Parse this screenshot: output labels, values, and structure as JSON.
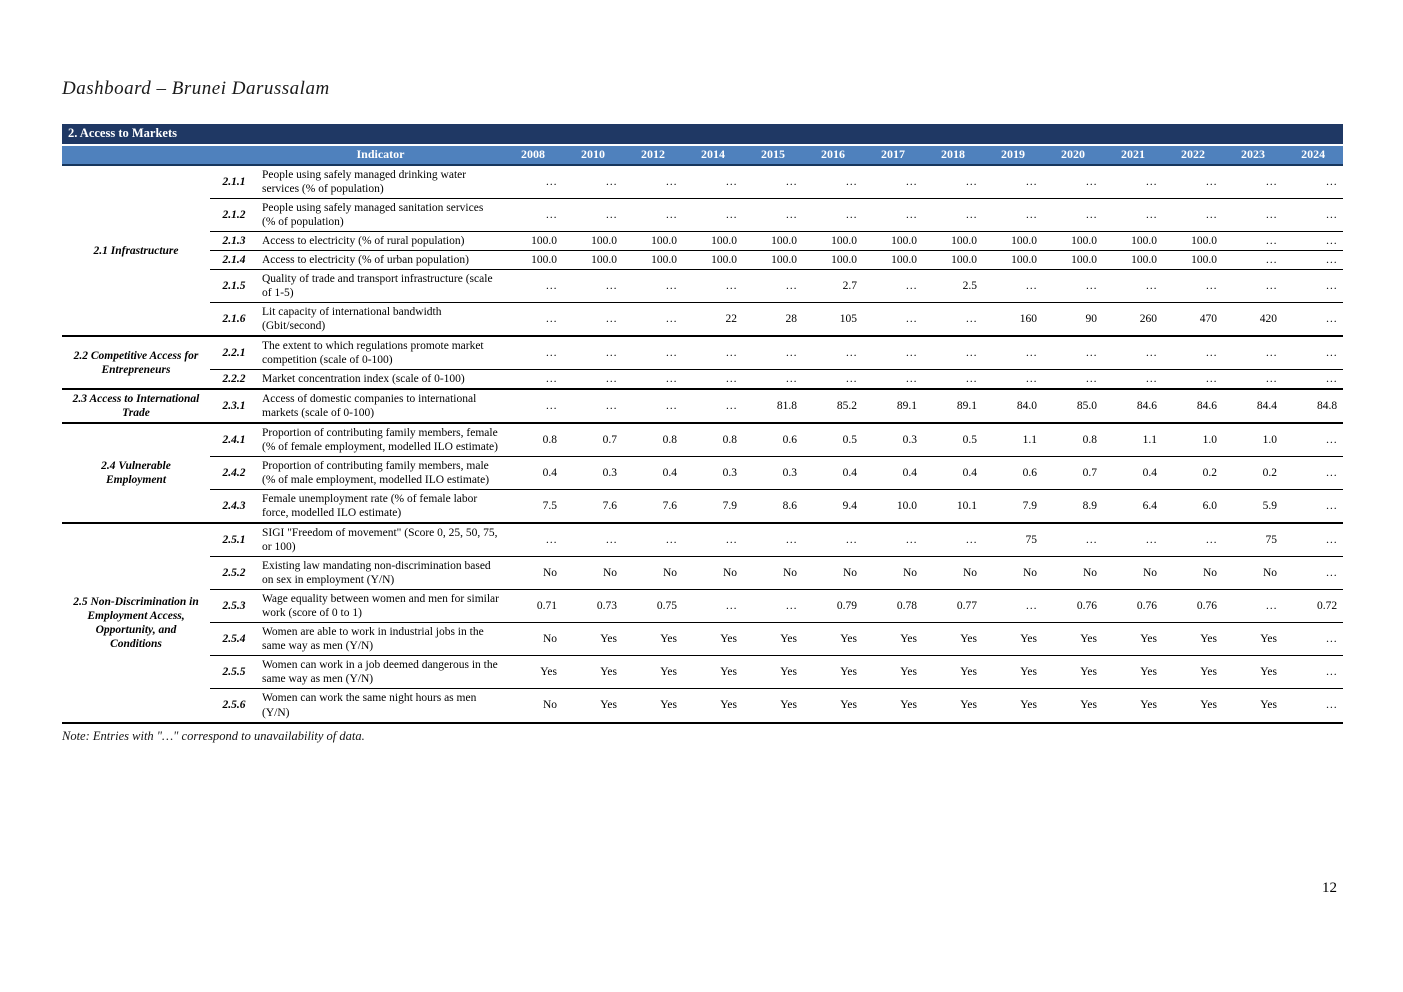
{
  "page": {
    "title": "Dashboard – Brunei Darussalam",
    "note": "Note: Entries with \"…\" correspond to unavailability of data.",
    "page_number": "12"
  },
  "table": {
    "section_title": "2. Access to Markets",
    "indicator_header": "Indicator",
    "years": [
      "2008",
      "2010",
      "2012",
      "2014",
      "2015",
      "2016",
      "2017",
      "2018",
      "2019",
      "2020",
      "2021",
      "2022",
      "2023",
      "2024"
    ],
    "colors": {
      "band_dark": "#1f3864",
      "band_blue": "#4f81bd",
      "header_rule": "#17365d"
    },
    "groups": [
      {
        "label": "2.1 Infrastructure",
        "rows": [
          {
            "code": "2.1.1",
            "indicator": "People using safely managed drinking water services (% of population)",
            "values": [
              "…",
              "…",
              "…",
              "…",
              "…",
              "…",
              "…",
              "…",
              "…",
              "…",
              "…",
              "…",
              "…",
              "…"
            ]
          },
          {
            "code": "2.1.2",
            "indicator": "People using safely managed sanitation services (% of population)",
            "values": [
              "…",
              "…",
              "…",
              "…",
              "…",
              "…",
              "…",
              "…",
              "…",
              "…",
              "…",
              "…",
              "…",
              "…"
            ]
          },
          {
            "code": "2.1.3",
            "indicator": "Access to electricity (% of rural population)",
            "values": [
              "100.0",
              "100.0",
              "100.0",
              "100.0",
              "100.0",
              "100.0",
              "100.0",
              "100.0",
              "100.0",
              "100.0",
              "100.0",
              "100.0",
              "…",
              "…"
            ]
          },
          {
            "code": "2.1.4",
            "indicator": "Access to electricity (% of urban population)",
            "values": [
              "100.0",
              "100.0",
              "100.0",
              "100.0",
              "100.0",
              "100.0",
              "100.0",
              "100.0",
              "100.0",
              "100.0",
              "100.0",
              "100.0",
              "…",
              "…"
            ]
          },
          {
            "code": "2.1.5",
            "indicator": "Quality of trade and transport infrastructure (scale of 1-5)",
            "values": [
              "…",
              "…",
              "…",
              "…",
              "…",
              "2.7",
              "…",
              "2.5",
              "…",
              "…",
              "…",
              "…",
              "…",
              "…"
            ]
          },
          {
            "code": "2.1.6",
            "indicator": "Lit capacity of international bandwidth (Gbit/second)",
            "values": [
              "…",
              "…",
              "…",
              "22",
              "28",
              "105",
              "…",
              "…",
              "160",
              "90",
              "260",
              "470",
              "420",
              "…"
            ]
          }
        ]
      },
      {
        "label": "2.2 Competitive Access for Entrepreneurs",
        "rows": [
          {
            "code": "2.2.1",
            "indicator": "The extent to which regulations promote market competition (scale of 0-100)",
            "values": [
              "…",
              "…",
              "…",
              "…",
              "…",
              "…",
              "…",
              "…",
              "…",
              "…",
              "…",
              "…",
              "…",
              "…"
            ]
          },
          {
            "code": "2.2.2",
            "indicator": "Market concentration index (scale of 0-100)",
            "values": [
              "…",
              "…",
              "…",
              "…",
              "…",
              "…",
              "…",
              "…",
              "…",
              "…",
              "…",
              "…",
              "…",
              "…"
            ]
          }
        ]
      },
      {
        "label": "2.3 Access to International Trade",
        "rows": [
          {
            "code": "2.3.1",
            "indicator": "Access of domestic companies to international markets (scale of 0-100)",
            "values": [
              "…",
              "…",
              "…",
              "…",
              "81.8",
              "85.2",
              "89.1",
              "89.1",
              "84.0",
              "85.0",
              "84.6",
              "84.6",
              "84.4",
              "84.8"
            ]
          }
        ]
      },
      {
        "label": "2.4 Vulnerable Employment",
        "rows": [
          {
            "code": "2.4.1",
            "indicator": "Proportion of contributing family members, female (% of female employment, modelled ILO estimate)",
            "values": [
              "0.8",
              "0.7",
              "0.8",
              "0.8",
              "0.6",
              "0.5",
              "0.3",
              "0.5",
              "1.1",
              "0.8",
              "1.1",
              "1.0",
              "1.0",
              "…"
            ]
          },
          {
            "code": "2.4.2",
            "indicator": "Proportion of contributing family members, male (% of male employment, modelled ILO estimate)",
            "values": [
              "0.4",
              "0.3",
              "0.4",
              "0.3",
              "0.3",
              "0.4",
              "0.4",
              "0.4",
              "0.6",
              "0.7",
              "0.4",
              "0.2",
              "0.2",
              "…"
            ]
          },
          {
            "code": "2.4.3",
            "indicator": "Female unemployment rate (% of female labor force, modelled ILO estimate)",
            "values": [
              "7.5",
              "7.6",
              "7.6",
              "7.9",
              "8.6",
              "9.4",
              "10.0",
              "10.1",
              "7.9",
              "8.9",
              "6.4",
              "6.0",
              "5.9",
              "…"
            ]
          }
        ]
      },
      {
        "label": "2.5 Non-Discrimination in Employment Access, Opportunity, and Conditions",
        "rows": [
          {
            "code": "2.5.1",
            "indicator": "SIGI \"Freedom of movement\" (Score 0, 25, 50, 75, or 100)",
            "values": [
              "…",
              "…",
              "…",
              "…",
              "…",
              "…",
              "…",
              "…",
              "75",
              "…",
              "…",
              "…",
              "75",
              "…"
            ]
          },
          {
            "code": "2.5.2",
            "indicator": "Existing law mandating non-discrimination based on sex in employment (Y/N)",
            "values": [
              "No",
              "No",
              "No",
              "No",
              "No",
              "No",
              "No",
              "No",
              "No",
              "No",
              "No",
              "No",
              "No",
              "…"
            ]
          },
          {
            "code": "2.5.3",
            "indicator": "Wage equality between women and men for similar work (score of 0 to 1)",
            "values": [
              "0.71",
              "0.73",
              "0.75",
              "…",
              "…",
              "0.79",
              "0.78",
              "0.77",
              "…",
              "0.76",
              "0.76",
              "0.76",
              "…",
              "0.72"
            ]
          },
          {
            "code": "2.5.4",
            "indicator": "Women are able to work in industrial jobs in the same way as men (Y/N)",
            "values": [
              "No",
              "Yes",
              "Yes",
              "Yes",
              "Yes",
              "Yes",
              "Yes",
              "Yes",
              "Yes",
              "Yes",
              "Yes",
              "Yes",
              "Yes",
              "…"
            ]
          },
          {
            "code": "2.5.5",
            "indicator": "Women can work in a job deemed dangerous in the same way as men (Y/N)",
            "values": [
              "Yes",
              "Yes",
              "Yes",
              "Yes",
              "Yes",
              "Yes",
              "Yes",
              "Yes",
              "Yes",
              "Yes",
              "Yes",
              "Yes",
              "Yes",
              "…"
            ]
          },
          {
            "code": "2.5.6",
            "indicator": "Women can work the same night hours as men (Y/N)",
            "values": [
              "No",
              "Yes",
              "Yes",
              "Yes",
              "Yes",
              "Yes",
              "Yes",
              "Yes",
              "Yes",
              "Yes",
              "Yes",
              "Yes",
              "Yes",
              "…"
            ]
          }
        ]
      }
    ]
  }
}
